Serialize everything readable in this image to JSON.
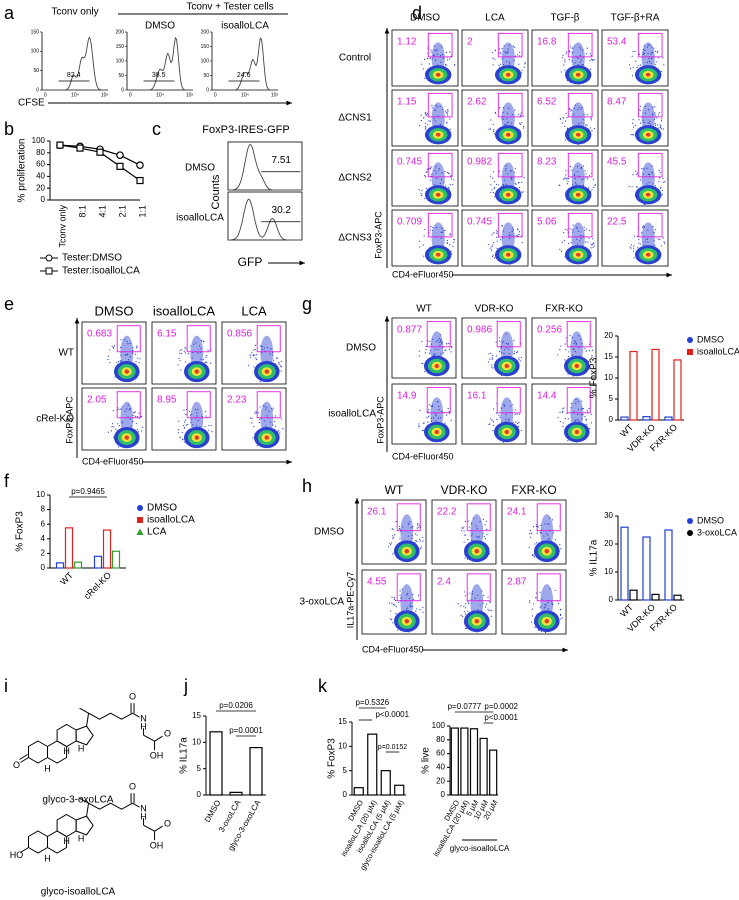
{
  "figure": {
    "a": {
      "letter": "a",
      "group_label": "Tconv + Tester cells",
      "x_label": "CFSE",
      "plots": [
        {
          "title": "Tconv only",
          "gate": 82.4,
          "yticks": [
            0,
            50,
            100,
            150
          ],
          "xtick_labels": [
            "0",
            "10⁴",
            "10⁵"
          ]
        },
        {
          "title": "DMSO",
          "gate": 38.5,
          "yticks": [
            0,
            50,
            100,
            150,
            200
          ],
          "xtick_labels": [
            "0",
            "10⁴",
            "10⁵"
          ]
        },
        {
          "title": "isoalloLCA",
          "gate": 24.6,
          "yticks": [
            0,
            50,
            100,
            150,
            200
          ],
          "xtick_labels": [
            "0",
            "10⁴",
            "10⁵"
          ]
        }
      ]
    },
    "b": {
      "letter": "b",
      "chart": {
        "type": "line",
        "y_label": "% proliferation",
        "ylim": [
          0,
          100
        ],
        "yticks": [
          0,
          20,
          40,
          60,
          80,
          100
        ],
        "categories": [
          "Tconv only",
          "8:1",
          "4:1",
          "2:1",
          "1:1"
        ],
        "series": [
          {
            "name": "Tester:DMSO",
            "color": "#000000",
            "values": [
              93,
              91,
              86,
              76,
              59
            ]
          },
          {
            "name": "Tester:isoalloLCA",
            "color": "#000000",
            "values": [
              93,
              88,
              81,
              57,
              33
            ]
          }
        ]
      }
    },
    "c": {
      "letter": "c",
      "title": "FoxP3-IRES-GFP",
      "y_label": "Counts",
      "x_label": "GFP",
      "rows": [
        {
          "label": "DMSO",
          "gate": 7.51
        },
        {
          "label": "isoalloLCA",
          "gate": 30.2
        }
      ]
    },
    "d": {
      "letter": "d",
      "columns": [
        "DMSO",
        "LCA",
        "TGF-β",
        "TGF-β+RA"
      ],
      "rows": [
        "Control",
        "ΔCNS1",
        "ΔCNS2",
        "ΔCNS3"
      ],
      "gates": [
        [
          1.12,
          2,
          16.8,
          53.4
        ],
        [
          1.15,
          2.62,
          6.52,
          8.47
        ],
        [
          0.745,
          0.982,
          8.23,
          45.5
        ],
        [
          0.709,
          0.745,
          5.06,
          22.5
        ]
      ],
      "y_label": "FoxP3-APC",
      "x_label": "CD4-eFluor450"
    },
    "e": {
      "letter": "e",
      "columns": [
        "DMSO",
        "isoalloLCA",
        "LCA"
      ],
      "rows": [
        "WT",
        "cRel-KO"
      ],
      "gates": [
        [
          0.683,
          6.15,
          0.856
        ],
        [
          2.05,
          8.95,
          2.23
        ]
      ],
      "y_label": "FoxP3-APC",
      "x_label": "CD4-eFluor450"
    },
    "f": {
      "letter": "f",
      "chart": {
        "type": "bar",
        "y_label": "% FoxP3",
        "ylim": [
          0,
          10
        ],
        "yticks": [
          0,
          2,
          4,
          6,
          8,
          10
        ],
        "categories": [
          "WT",
          "cRel-KO"
        ],
        "series": [
          {
            "name": "DMSO",
            "color": "#1f3fd6",
            "values": [
              0.7,
              1.6
            ]
          },
          {
            "name": "isoalloLCA",
            "color": "#e0201a",
            "values": [
              5.5,
              5.2
            ]
          },
          {
            "name": "LCA",
            "color": "#2ca02c",
            "values": [
              0.8,
              2.3
            ]
          }
        ],
        "annotations": [
          "p=0.9465"
        ]
      }
    },
    "g": {
      "letter": "g",
      "columns": [
        "WT",
        "VDR-KO",
        "FXR-KO"
      ],
      "rows": [
        "DMSO",
        "isoalloLCA"
      ],
      "gates": [
        [
          0.877,
          0.986,
          0.256
        ],
        [
          14.9,
          16.1,
          14.4
        ]
      ],
      "y_label": "FoxP3-APC",
      "x_label": "CD4-eFluor450",
      "chart": {
        "type": "bar",
        "y_label": "% FoxP3",
        "ylim": [
          0,
          20
        ],
        "yticks": [
          0,
          5,
          10,
          15,
          20
        ],
        "categories": [
          "WT",
          "VDR-KO",
          "FXR-KO"
        ],
        "series": [
          {
            "name": "DMSO",
            "color": "#1f3fd6",
            "values": [
              0.7,
              0.8,
              0.7
            ]
          },
          {
            "name": "isoalloLCA",
            "color": "#e0201a",
            "values": [
              16.3,
              16.8,
              14.3
            ]
          }
        ]
      }
    },
    "h": {
      "letter": "h",
      "columns": [
        "WT",
        "VDR-KO",
        "FXR-KO"
      ],
      "rows": [
        "DMSO",
        "3-oxoLCA"
      ],
      "gates": [
        [
          26.1,
          22.2,
          24.1
        ],
        [
          4.55,
          2.4,
          2.87
        ]
      ],
      "y_label": "IL17a-PE-Cy7",
      "x_label": "CD4-eFluor450",
      "chart": {
        "type": "bar",
        "y_label": "% IL17a",
        "ylim": [
          0,
          30
        ],
        "yticks": [
          0,
          10,
          20,
          30
        ],
        "categories": [
          "WT",
          "VDR-KO",
          "FXR-KO"
        ],
        "series": [
          {
            "name": "DMSO",
            "color": "#1f3fd6",
            "values": [
              26,
              22.5,
              25
            ]
          },
          {
            "name": "3-oxoLCA",
            "color": "#000000",
            "values": [
              3.5,
              2,
              1.7
            ]
          }
        ]
      }
    },
    "i": {
      "letter": "i",
      "structures": [
        {
          "name": "glyco-3-oxoLCA",
          "atoms": [
            "O",
            "H",
            "H",
            "H",
            "O",
            "N",
            "H",
            "O",
            "OH"
          ]
        },
        {
          "name": "glyco-isoalloLCA",
          "atoms": [
            "HO",
            "H",
            "H",
            "H",
            "O",
            "N",
            "H",
            "O",
            "OH"
          ]
        }
      ]
    },
    "j": {
      "letter": "j",
      "chart": {
        "type": "bar",
        "y_label": "% IL17a",
        "ylim": [
          0,
          15
        ],
        "yticks": [
          0,
          5,
          10,
          15
        ],
        "categories": [
          "DMSO",
          "3-oxoLCA",
          "glyco-3-oxoLCA"
        ],
        "values": [
          12,
          0.5,
          9
        ],
        "annotations": [
          "p=0.0206",
          "p=0.0001"
        ]
      }
    },
    "k": {
      "letter": "k",
      "chart": {
        "type": "bar",
        "y_label": "% FoxP3",
        "ylim": [
          0,
          15
        ],
        "yticks": [
          0,
          5,
          10,
          15
        ],
        "categories": [
          "DMSO",
          "isoalloLCA (20 µM)",
          "isoalloLCA (5 µM)",
          "glyco-isoalloLCA (5 µM)"
        ],
        "values": [
          1.5,
          12.5,
          5,
          2
        ],
        "annotations": [
          "p=0.5326",
          "p<0.0001",
          "p=0.0152"
        ]
      },
      "chart2": {
        "type": "bar",
        "y_label": "% live",
        "ylim": [
          0,
          100
        ],
        "yticks": [
          0,
          20,
          40,
          60,
          80,
          100
        ],
        "categories": [
          "DMSO",
          "isoalloLCA (20 µM)",
          "5 µM",
          "10 µM",
          "20 µM"
        ],
        "group_label": "glyco-isoalloLCA",
        "values": [
          97,
          97,
          96,
          82,
          65
        ],
        "annotations": [
          "p=0.0777",
          "p=0.0002",
          "p<0.0001"
        ]
      }
    }
  }
}
